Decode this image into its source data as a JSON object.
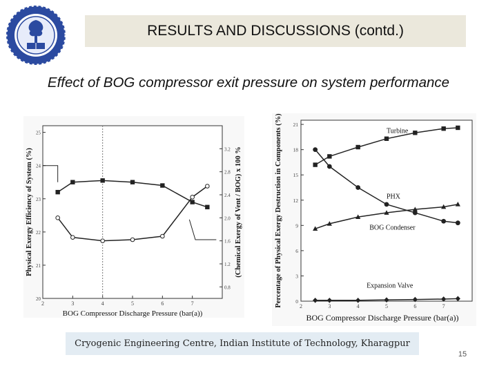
{
  "header": {
    "title": "RESULTS AND DISCUSSIONS (contd.)"
  },
  "subtitle": "Effect of BOG compressor exit pressure on system performance",
  "logo": {
    "name": "iit-kharagpur-seal",
    "color": "#1f3a8a"
  },
  "footer": {
    "text": "Cryogenic Engineering Centre, Indian Institute of Technology, Kharagpur",
    "page_number": "15"
  },
  "chart_data": [
    {
      "type": "line",
      "xlabel": "BOG Compressor Discharge Pressure (bar(a))",
      "ylabel": "Physical Exergy Efficiency of System (%)",
      "y2label": "(Chemical Exergy of Vent / BOG) x 100 %",
      "xlim": [
        2,
        8
      ],
      "ylim": [
        20,
        25.2
      ],
      "y2lim": [
        0.6,
        3.6
      ],
      "xticks": [
        "2",
        "3",
        "4",
        "5",
        "6",
        "7"
      ],
      "yticks": [
        "20",
        "21",
        "22",
        "23",
        "24",
        "25"
      ],
      "y2ticks": [
        "0.8",
        "1.2",
        "1.6",
        "2.0",
        "2.4",
        "2.8",
        "3.2"
      ],
      "series": [
        {
          "axis": "left",
          "marker": "square",
          "x": [
            2.5,
            3,
            4,
            5,
            6,
            7,
            7.5
          ],
          "values": [
            23.2,
            23.5,
            23.55,
            23.5,
            23.4,
            22.9,
            22.75
          ]
        },
        {
          "axis": "right",
          "marker": "circle-open",
          "x": [
            2.5,
            3,
            4,
            5,
            6,
            7,
            7.5
          ],
          "values": [
            2.0,
            1.66,
            1.6,
            1.62,
            1.68,
            2.36,
            2.55
          ]
        }
      ],
      "arrows": [
        {
          "from_x": 2.0,
          "y": 24.0,
          "to_x": 2.5,
          "y_end": 23.5
        },
        {
          "from_x": 7.8,
          "y": 1.62,
          "to_x": 7.1,
          "y_end": 1.62
        }
      ],
      "dashed_vline_x": 4
    },
    {
      "type": "line",
      "xlabel": "BOG Compressor Discharge Pressure (bar(a))",
      "ylabel": "Percentage of Physical Exergy Destruction in Components (%)",
      "xlim": [
        2,
        8
      ],
      "ylim": [
        0,
        21.5
      ],
      "xticks": [
        "2",
        "3",
        "4",
        "5",
        "6",
        "7"
      ],
      "yticks": [
        "0",
        "3",
        "6",
        "9",
        "12",
        "15",
        "18",
        "21"
      ],
      "series": [
        {
          "name": "Turbine",
          "marker": "square",
          "x": [
            2.5,
            3,
            4,
            5,
            6,
            7,
            7.5
          ],
          "values": [
            16.2,
            17.2,
            18.3,
            19.3,
            20.0,
            20.5,
            20.6
          ]
        },
        {
          "name": "PHX",
          "marker": "circle",
          "x": [
            2.5,
            3,
            4,
            5,
            6,
            7,
            7.5
          ],
          "values": [
            18.0,
            16.0,
            13.5,
            11.5,
            10.5,
            9.5,
            9.3
          ]
        },
        {
          "name": "BOG Condenser",
          "marker": "triangle",
          "x": [
            2.5,
            3,
            4,
            5,
            6,
            7,
            7.5
          ],
          "values": [
            8.6,
            9.2,
            10.0,
            10.5,
            10.9,
            11.2,
            11.5
          ]
        },
        {
          "name": "Expansion Valve",
          "marker": "diamond",
          "x": [
            2.5,
            3,
            4,
            5,
            6,
            7,
            7.5
          ],
          "values": [
            0.1,
            0.1,
            0.1,
            0.15,
            0.2,
            0.25,
            0.3
          ]
        }
      ]
    }
  ]
}
